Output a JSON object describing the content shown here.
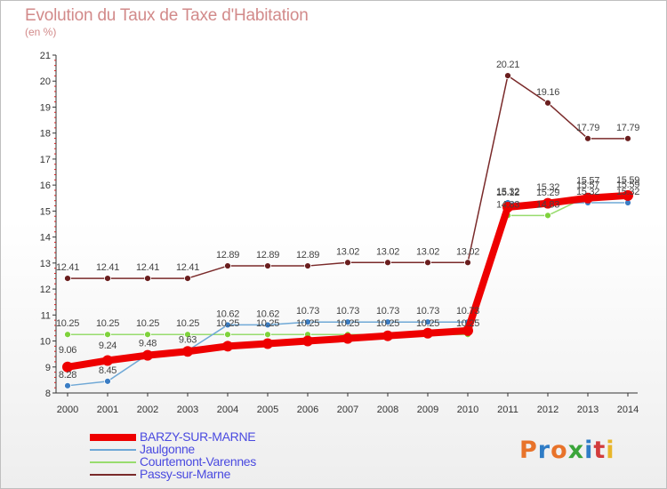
{
  "header": {
    "title": "Evolution du Taux de Taxe d'Habitation",
    "subtitle": "(en %)"
  },
  "logo": {
    "text": "Proxiti",
    "colors": [
      "#e8732a",
      "#2f7cc6",
      "#e8732a",
      "#3aa53a",
      "#2f7cc6",
      "#d23c3c",
      "#e8b62a"
    ]
  },
  "chart_data": {
    "type": "line",
    "title": "Evolution du Taux de Taxe d'Habitation",
    "ylabel": "(en %)",
    "xlabel": "",
    "ylim": [
      8,
      21
    ],
    "grid": false,
    "legend_position": "bottom-left",
    "categories": [
      "2000",
      "2001",
      "2002",
      "2003",
      "2004",
      "2005",
      "2006",
      "2007",
      "2008",
      "2009",
      "2010",
      "2011",
      "2012",
      "2013",
      "2014"
    ],
    "series": [
      {
        "name": "BARZY-SUR-MARNE",
        "color": "#ee0000",
        "marker_color": "#ee0000",
        "labels": false,
        "values": [
          9.0,
          9.25,
          9.45,
          9.6,
          9.8,
          9.9,
          10.0,
          10.1,
          10.2,
          10.3,
          10.4,
          15.15,
          15.3,
          15.5,
          15.6
        ]
      },
      {
        "name": "Jaulgonne",
        "color": "#6fa8d6",
        "marker_color": "#3b7dc4",
        "labels": true,
        "values": [
          8.28,
          8.45,
          9.48,
          9.63,
          10.62,
          10.62,
          10.73,
          10.73,
          10.73,
          10.73,
          10.73,
          15.32,
          15.29,
          15.32,
          15.32
        ]
      },
      {
        "name": "Courtemont-Varennes",
        "color": "#98dc6e",
        "marker_color": "#7fd23c",
        "labels": true,
        "values": [
          10.25,
          10.25,
          10.25,
          10.25,
          10.25,
          10.25,
          10.25,
          10.25,
          10.25,
          10.25,
          10.25,
          14.83,
          14.83,
          15.57,
          15.59
        ]
      },
      {
        "name": "Passy-sur-Marne",
        "color": "#7a2a2a",
        "marker_color": "#6a1e1e",
        "labels": true,
        "values": [
          12.41,
          12.41,
          12.41,
          12.41,
          12.89,
          12.89,
          12.89,
          13.02,
          13.02,
          13.02,
          13.02,
          20.21,
          19.16,
          17.79,
          17.79
        ]
      }
    ],
    "annotations": [
      "9.06",
      "9.24",
      "15.12",
      "15.32",
      "15.57",
      "15.59"
    ]
  }
}
